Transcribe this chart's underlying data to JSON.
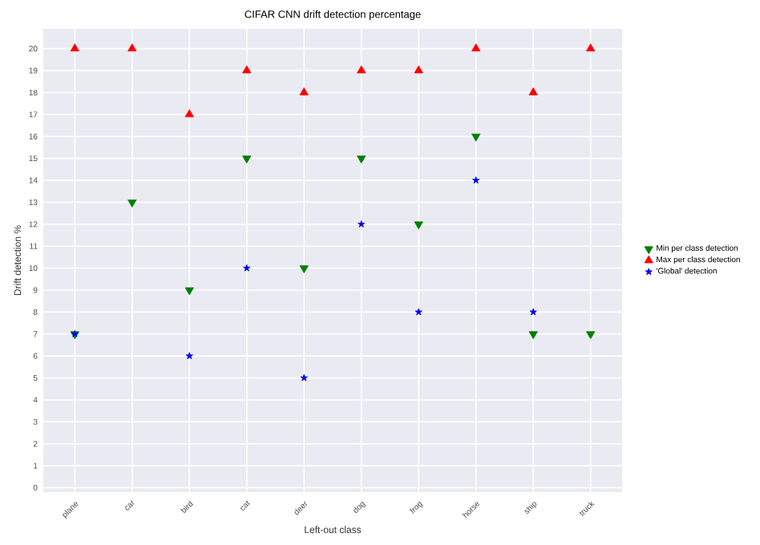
{
  "chart_data": {
    "type": "scatter",
    "title": "CIFAR CNN drift detection percentage",
    "xlabel": "Left-out class",
    "ylabel": "Drift detection %",
    "categories": [
      "plane",
      "car",
      "bird",
      "cat",
      "deer",
      "dog",
      "frog",
      "horse",
      "ship",
      "truck"
    ],
    "series": [
      {
        "name": "Min per class detection",
        "color": "#007f00",
        "marker": "triangle_down",
        "values": [
          7,
          13,
          9,
          15,
          10,
          15,
          12,
          16,
          7,
          7
        ]
      },
      {
        "name": "Max per class detection",
        "color": "#ff0000",
        "marker": "triangle",
        "values": [
          20,
          20,
          17,
          19,
          18,
          19,
          19,
          20,
          18,
          20
        ]
      },
      {
        "name": "'Global' detection",
        "color": "#0000ff",
        "marker": "star",
        "values": [
          7,
          null,
          6,
          10,
          5,
          12,
          8,
          14,
          8,
          null
        ]
      }
    ],
    "ylim": [
      -0.2,
      20.9
    ],
    "yticks": [
      0,
      1,
      2,
      3,
      4,
      5,
      6,
      7,
      8,
      9,
      10,
      11,
      12,
      13,
      14,
      15,
      16,
      17,
      18,
      19,
      20
    ],
    "grid": true,
    "legend": "right"
  }
}
